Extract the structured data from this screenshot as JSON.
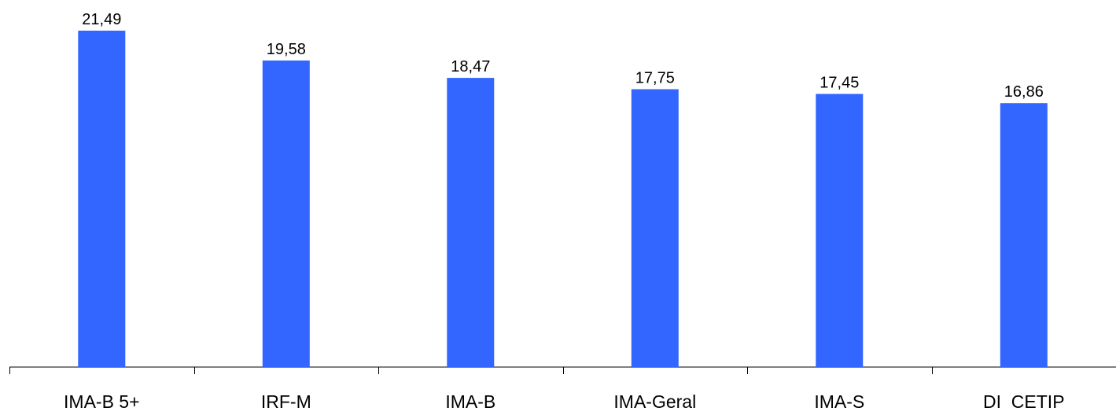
{
  "chart_data": {
    "type": "bar",
    "categories": [
      "IMA-B 5+",
      "IRF-M",
      "IMA-B",
      "IMA-Geral",
      "IMA-S",
      "DI  CETIP"
    ],
    "values": [
      21.49,
      19.58,
      18.47,
      17.75,
      17.45,
      16.86
    ],
    "data_labels": [
      "21,49",
      "19,58",
      "18,47",
      "17,75",
      "17,45",
      "16,86"
    ],
    "title": "",
    "xlabel": "",
    "ylabel": "",
    "ylim": [
      0,
      21.49
    ],
    "grid": false,
    "legend": "none",
    "bar_color": "#3366ff",
    "axis_color": "#000000"
  }
}
